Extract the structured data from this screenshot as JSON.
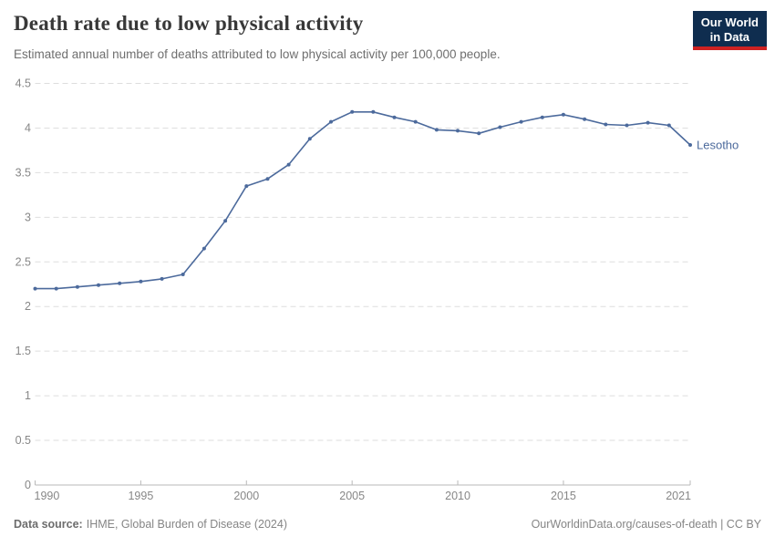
{
  "header": {
    "title": "Death rate due to low physical activity",
    "subtitle": "Estimated annual number of deaths attributed to low physical activity per 100,000 people.",
    "logo": {
      "line1": "Our World",
      "line2": "in Data"
    }
  },
  "chart_data": {
    "type": "line",
    "title": "Death rate due to low physical activity",
    "xlabel": "",
    "ylabel": "",
    "xlim": [
      1990,
      2021
    ],
    "ylim": [
      0,
      4.5
    ],
    "x_ticks": [
      1990,
      1995,
      2000,
      2005,
      2010,
      2015,
      2021
    ],
    "y_ticks": [
      0,
      0.5,
      1,
      1.5,
      2,
      2.5,
      3,
      3.5,
      4,
      4.5
    ],
    "grid": "horizontal-dashed",
    "legend_position": "end-of-line-label",
    "series": [
      {
        "name": "Lesotho",
        "color": "#4C6A9C",
        "x": [
          1990,
          1991,
          1992,
          1993,
          1994,
          1995,
          1996,
          1997,
          1998,
          1999,
          2000,
          2001,
          2002,
          2003,
          2004,
          2005,
          2006,
          2007,
          2008,
          2009,
          2010,
          2011,
          2012,
          2013,
          2014,
          2015,
          2016,
          2017,
          2018,
          2019,
          2020,
          2021
        ],
        "values": [
          2.2,
          2.2,
          2.22,
          2.24,
          2.26,
          2.28,
          2.31,
          2.36,
          2.65,
          2.96,
          3.35,
          3.43,
          3.59,
          3.88,
          4.07,
          4.18,
          4.18,
          4.12,
          4.07,
          3.98,
          3.97,
          3.94,
          4.01,
          4.07,
          4.12,
          4.15,
          4.1,
          4.04,
          4.03,
          4.06,
          4.03,
          3.81
        ]
      }
    ]
  },
  "footer": {
    "source_label": "Data source:",
    "source_value": "IHME, Global Burden of Disease (2024)",
    "credit": "OurWorldinData.org/causes-of-death | CC BY"
  },
  "colors": {
    "accent": "#4C6A9C",
    "grid": "#DEDEDE",
    "axis": "#B9B9B9",
    "tick_label": "#878787",
    "title": "#383838",
    "subtitle": "#6E6E6E",
    "footer": "#858585",
    "logo_bg": "#0F2D4F",
    "logo_red": "#CE2222"
  }
}
